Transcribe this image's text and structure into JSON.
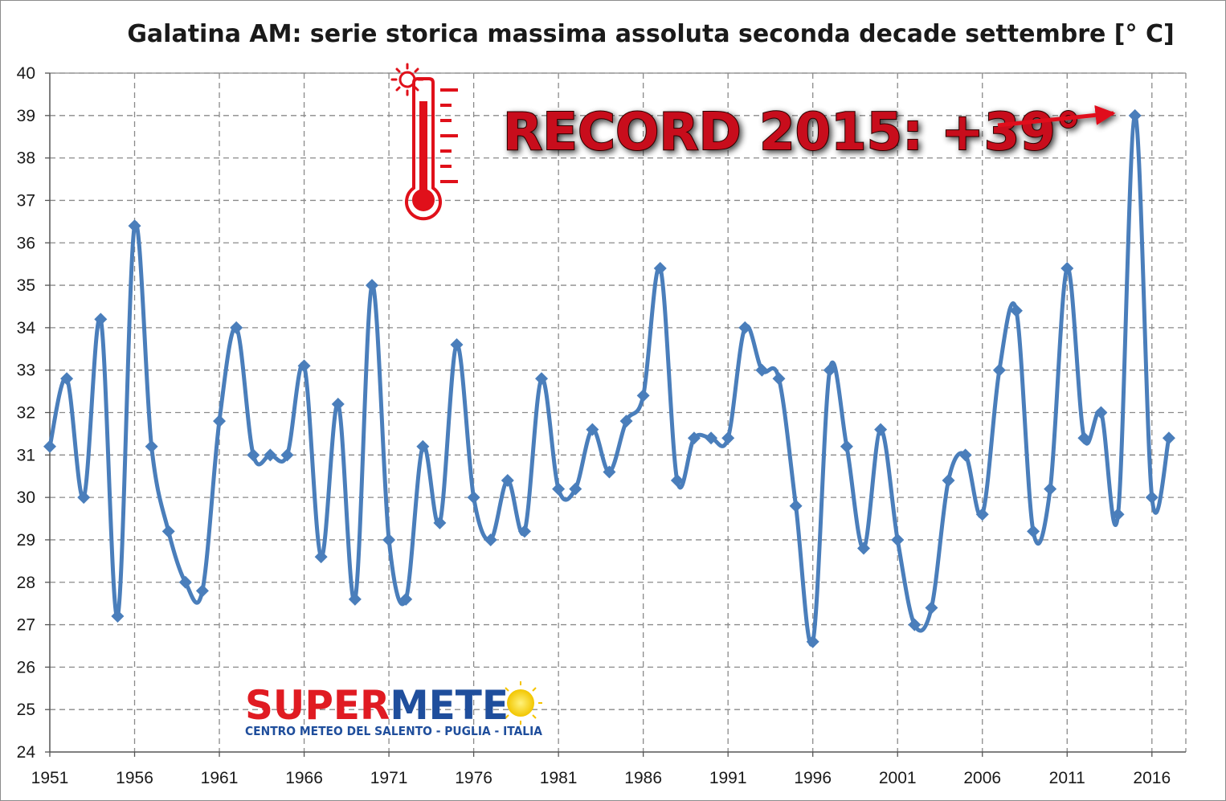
{
  "chart_data": {
    "type": "line",
    "title": "Galatina AM: serie storica massima assoluta seconda decade settembre [° C]",
    "xlabel": "",
    "ylabel": "",
    "ylim": [
      24,
      40
    ],
    "yticks": [
      24,
      25,
      26,
      27,
      28,
      29,
      30,
      31,
      32,
      33,
      34,
      35,
      36,
      37,
      38,
      39,
      40
    ],
    "xlim": [
      1951,
      2018
    ],
    "xticks": [
      1951,
      1956,
      1961,
      1966,
      1971,
      1976,
      1981,
      1986,
      1991,
      1996,
      2001,
      2006,
      2011,
      2016
    ],
    "grid": true,
    "grid_style": "dashed",
    "legend": "none",
    "line_color": "#4a7ebb",
    "series": [
      {
        "x": [
          1951,
          1952,
          1953,
          1954,
          1955,
          1956,
          1957,
          1958,
          1959,
          1960,
          1961,
          1962,
          1963,
          1964,
          1965,
          1966,
          1967,
          1968,
          1969,
          1970,
          1971,
          1972,
          1973,
          1974,
          1975,
          1976,
          1977,
          1978,
          1979,
          1980,
          1981,
          1982,
          1983,
          1984,
          1985,
          1986,
          1987,
          1988,
          1989,
          1990,
          1991,
          1992,
          1993,
          1994,
          1995,
          1996,
          1997,
          1998,
          1999,
          2000,
          2001,
          2002,
          2003,
          2004,
          2005,
          2006,
          2007,
          2008,
          2009,
          2010,
          2011,
          2012,
          2013,
          2014,
          2015,
          2016,
          2017
        ],
        "values": [
          31.2,
          32.8,
          30.0,
          34.2,
          27.2,
          36.4,
          31.2,
          29.2,
          28.0,
          27.8,
          31.8,
          34.0,
          31.0,
          31.0,
          31.0,
          33.1,
          28.6,
          32.2,
          27.6,
          35.0,
          29.0,
          27.6,
          31.2,
          29.4,
          33.6,
          30.0,
          29.0,
          30.4,
          29.2,
          32.8,
          30.2,
          30.2,
          31.6,
          30.6,
          31.8,
          32.4,
          35.4,
          30.4,
          31.4,
          31.4,
          31.4,
          34.0,
          33.0,
          32.8,
          29.8,
          26.6,
          33.0,
          31.2,
          28.8,
          31.6,
          29.0,
          27.0,
          27.4,
          30.4,
          31.0,
          29.6,
          33.0,
          34.4,
          29.2,
          30.2,
          35.4,
          31.4,
          32.0,
          29.6,
          39.0,
          30.0,
          31.4
        ]
      }
    ],
    "annotations": [
      {
        "text": "RECORD 2015:  +39°",
        "color": "#c8101a",
        "points_to": {
          "x": 2015,
          "y": 39.0
        }
      }
    ]
  },
  "logo": {
    "word_part1": "SUPER",
    "word_part2": "METE",
    "subtitle": "CENTRO METEO DEL SALENTO - PUGLIA - ITALIA",
    "colors": {
      "part1": "#e01b22",
      "part2": "#1f4e9c",
      "sun": "#f5d417"
    }
  },
  "icons": {
    "thermometer": "thermometer-hot-icon",
    "sun": "sun-icon"
  }
}
